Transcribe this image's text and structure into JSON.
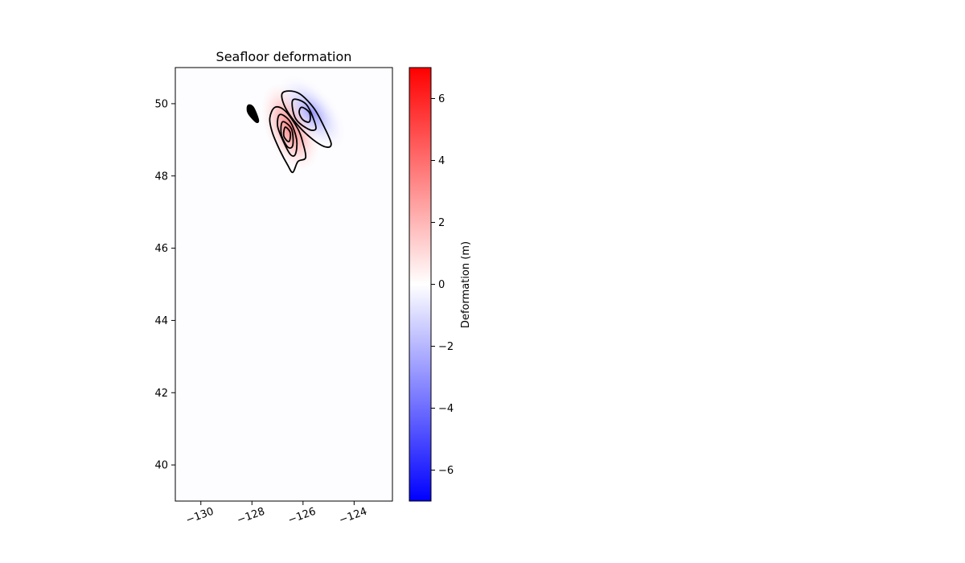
{
  "chart_data": {
    "type": "heatmap",
    "title": "Seafloor deformation",
    "xlabel": "",
    "ylabel": "",
    "xlim": [
      -131,
      -122.5
    ],
    "ylim": [
      39,
      51
    ],
    "xticks": [
      -130,
      -128,
      -126,
      -124
    ],
    "xtick_labels": [
      "−130",
      "−128",
      "−126",
      "−124"
    ],
    "yticks": [
      40,
      42,
      44,
      46,
      48,
      50
    ],
    "ytick_labels": [
      "40",
      "42",
      "44",
      "46",
      "48",
      "50"
    ],
    "grid": false,
    "colormap": "bwr",
    "colors": {
      "min": "#0000ff",
      "mid": "#ffffff",
      "max": "#ff0000",
      "contour": "#000000"
    },
    "colorbar": {
      "label": "Deformation (m)",
      "range": [
        -7,
        7
      ],
      "ticks": [
        6,
        4,
        2,
        0,
        -2,
        -4,
        -6
      ],
      "tick_labels": [
        "6",
        "4",
        "2",
        "0",
        "−2",
        "−4",
        "−6"
      ]
    },
    "features": [
      {
        "name": "uplift",
        "sign": "positive",
        "center": [
          -126.6,
          49.2
        ],
        "peak_m": 2.5
      },
      {
        "name": "subsidence",
        "sign": "negative",
        "center": [
          -125.9,
          49.6
        ],
        "peak_m": -1.5
      }
    ],
    "contours": [
      {
        "kind": "uplift-outer",
        "points": [
          [
            -127.1,
            49.9
          ],
          [
            -126.7,
            49.8
          ],
          [
            -126.2,
            49.3
          ],
          [
            -126.0,
            48.9
          ],
          [
            -125.9,
            48.5
          ],
          [
            -126.2,
            48.4
          ],
          [
            -126.4,
            48.1
          ],
          [
            -126.6,
            48.3
          ],
          [
            -126.9,
            48.7
          ],
          [
            -127.2,
            49.2
          ],
          [
            -127.3,
            49.6
          ]
        ]
      },
      {
        "kind": "uplift-mid",
        "points": [
          [
            -126.9,
            49.7
          ],
          [
            -126.5,
            49.5
          ],
          [
            -126.25,
            49.0
          ],
          [
            -126.3,
            48.6
          ],
          [
            -126.5,
            48.6
          ],
          [
            -126.8,
            49.0
          ],
          [
            -127.0,
            49.4
          ]
        ]
      },
      {
        "kind": "uplift-inner",
        "points": [
          [
            -126.8,
            49.5
          ],
          [
            -126.45,
            49.3
          ],
          [
            -126.4,
            48.85
          ],
          [
            -126.6,
            48.8
          ],
          [
            -126.85,
            49.15
          ]
        ]
      },
      {
        "kind": "uplift-core",
        "points": [
          [
            -126.7,
            49.35
          ],
          [
            -126.5,
            49.2
          ],
          [
            -126.55,
            48.95
          ],
          [
            -126.75,
            49.1
          ]
        ]
      },
      {
        "kind": "subsidence-outer",
        "points": [
          [
            -126.8,
            50.3
          ],
          [
            -126.2,
            50.3
          ],
          [
            -125.6,
            49.9
          ],
          [
            -125.2,
            49.4
          ],
          [
            -124.9,
            48.9
          ],
          [
            -125.1,
            48.8
          ],
          [
            -125.6,
            49.0
          ],
          [
            -126.2,
            49.4
          ],
          [
            -126.7,
            49.9
          ]
        ]
      },
      {
        "kind": "subsidence-mid",
        "points": [
          [
            -126.4,
            50.1
          ],
          [
            -125.9,
            50.0
          ],
          [
            -125.6,
            49.6
          ],
          [
            -125.5,
            49.3
          ],
          [
            -125.8,
            49.3
          ],
          [
            -126.3,
            49.6
          ]
        ]
      },
      {
        "kind": "subsidence-inner",
        "points": [
          [
            -126.05,
            49.9
          ],
          [
            -125.75,
            49.75
          ],
          [
            -125.75,
            49.5
          ],
          [
            -126.0,
            49.55
          ],
          [
            -126.15,
            49.75
          ]
        ]
      },
      {
        "kind": "coast-blob",
        "points": [
          [
            -128.15,
            49.95
          ],
          [
            -127.95,
            49.9
          ],
          [
            -127.75,
            49.55
          ],
          [
            -127.85,
            49.5
          ],
          [
            -128.15,
            49.75
          ]
        ]
      }
    ]
  }
}
